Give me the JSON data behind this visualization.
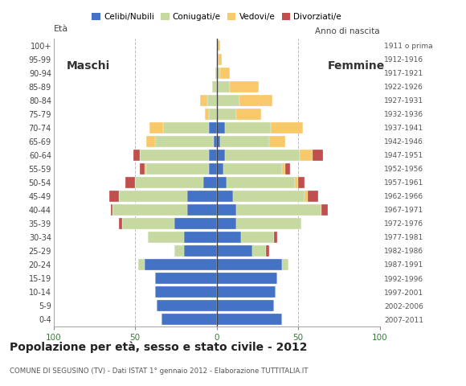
{
  "age_groups": [
    "100+",
    "95-99",
    "90-94",
    "85-89",
    "80-84",
    "75-79",
    "70-74",
    "65-69",
    "60-64",
    "55-59",
    "50-54",
    "45-49",
    "40-44",
    "35-39",
    "30-34",
    "25-29",
    "20-24",
    "15-19",
    "10-14",
    "5-9",
    "0-4"
  ],
  "birth_years": [
    "1911 o prima",
    "1912-1916",
    "1917-1921",
    "1922-1926",
    "1927-1931",
    "1932-1936",
    "1937-1941",
    "1942-1946",
    "1947-1951",
    "1952-1956",
    "1957-1961",
    "1962-1966",
    "1967-1971",
    "1972-1976",
    "1977-1981",
    "1982-1986",
    "1987-1991",
    "1992-1996",
    "1997-2001",
    "2002-2006",
    "2007-2011"
  ],
  "males": {
    "celibi": [
      0,
      0,
      0,
      0,
      0,
      0,
      5,
      2,
      5,
      5,
      8,
      18,
      18,
      26,
      20,
      20,
      44,
      38,
      38,
      37,
      34
    ],
    "coniugati": [
      0,
      0,
      1,
      3,
      6,
      5,
      28,
      36,
      42,
      38,
      42,
      42,
      46,
      32,
      22,
      6,
      4,
      0,
      0,
      0,
      0
    ],
    "vedovi": [
      0,
      0,
      0,
      0,
      4,
      2,
      8,
      5,
      0,
      1,
      0,
      0,
      0,
      0,
      0,
      0,
      0,
      0,
      0,
      0,
      0
    ],
    "divorziati": [
      0,
      0,
      0,
      0,
      0,
      0,
      0,
      0,
      4,
      3,
      6,
      6,
      1,
      2,
      0,
      0,
      0,
      0,
      0,
      0,
      0
    ]
  },
  "females": {
    "celibi": [
      0,
      0,
      0,
      0,
      0,
      0,
      5,
      2,
      5,
      4,
      6,
      10,
      12,
      12,
      15,
      22,
      40,
      37,
      36,
      35,
      40
    ],
    "coniugati": [
      0,
      1,
      2,
      8,
      14,
      12,
      28,
      30,
      46,
      36,
      42,
      44,
      52,
      40,
      20,
      8,
      4,
      0,
      0,
      0,
      0
    ],
    "vedovi": [
      2,
      2,
      6,
      18,
      20,
      15,
      20,
      10,
      8,
      2,
      2,
      2,
      0,
      0,
      0,
      0,
      0,
      0,
      0,
      0,
      0
    ],
    "divorziati": [
      0,
      0,
      0,
      0,
      0,
      0,
      0,
      0,
      6,
      3,
      4,
      6,
      4,
      0,
      2,
      2,
      0,
      0,
      0,
      0,
      0
    ]
  },
  "colors": {
    "celibi": "#4472C4",
    "coniugati": "#C6D9A0",
    "vedovi": "#F8C96B",
    "divorziati": "#C0504D"
  },
  "xlim": 100,
  "title": "Popolazione per età, sesso e stato civile - 2012",
  "subtitle": "COMUNE DI SEGUSINO (TV) - Dati ISTAT 1° gennaio 2012 - Elaborazione TUTTITALIA.IT",
  "xlabel_left": "Maschi",
  "xlabel_right": "Femmine",
  "ylabel_left": "Età",
  "ylabel_right": "Anno di nascita",
  "legend_labels": [
    "Celibi/Nubili",
    "Coniugati/e",
    "Vedovi/e",
    "Divorziati/e"
  ],
  "background_color": "#ffffff",
  "grid_color": "#bbbbbb"
}
